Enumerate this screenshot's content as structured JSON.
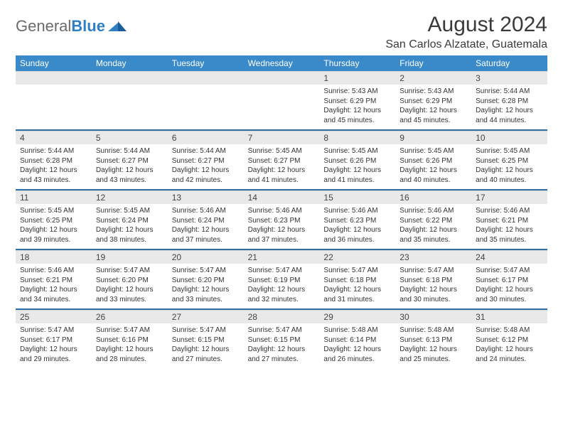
{
  "logo": {
    "part1": "General",
    "part2": "Blue"
  },
  "title": {
    "month": "August 2024",
    "location": "San Carlos Alzatate, Guatemala"
  },
  "colors": {
    "header_bg": "#3a8ac9",
    "daynum_bg": "#e9e9e9",
    "row_border": "#2f6fa6",
    "logo_gray": "#6b6b6b",
    "logo_blue": "#2f7fc2"
  },
  "weekdays": [
    "Sunday",
    "Monday",
    "Tuesday",
    "Wednesday",
    "Thursday",
    "Friday",
    "Saturday"
  ],
  "weeks": [
    {
      "nums": [
        "",
        "",
        "",
        "",
        "1",
        "2",
        "3"
      ],
      "details": [
        "",
        "",
        "",
        "",
        "Sunrise: 5:43 AM\nSunset: 6:29 PM\nDaylight: 12 hours and 45 minutes.",
        "Sunrise: 5:43 AM\nSunset: 6:29 PM\nDaylight: 12 hours and 45 minutes.",
        "Sunrise: 5:44 AM\nSunset: 6:28 PM\nDaylight: 12 hours and 44 minutes."
      ]
    },
    {
      "nums": [
        "4",
        "5",
        "6",
        "7",
        "8",
        "9",
        "10"
      ],
      "details": [
        "Sunrise: 5:44 AM\nSunset: 6:28 PM\nDaylight: 12 hours and 43 minutes.",
        "Sunrise: 5:44 AM\nSunset: 6:27 PM\nDaylight: 12 hours and 43 minutes.",
        "Sunrise: 5:44 AM\nSunset: 6:27 PM\nDaylight: 12 hours and 42 minutes.",
        "Sunrise: 5:45 AM\nSunset: 6:27 PM\nDaylight: 12 hours and 41 minutes.",
        "Sunrise: 5:45 AM\nSunset: 6:26 PM\nDaylight: 12 hours and 41 minutes.",
        "Sunrise: 5:45 AM\nSunset: 6:26 PM\nDaylight: 12 hours and 40 minutes.",
        "Sunrise: 5:45 AM\nSunset: 6:25 PM\nDaylight: 12 hours and 40 minutes."
      ]
    },
    {
      "nums": [
        "11",
        "12",
        "13",
        "14",
        "15",
        "16",
        "17"
      ],
      "details": [
        "Sunrise: 5:45 AM\nSunset: 6:25 PM\nDaylight: 12 hours and 39 minutes.",
        "Sunrise: 5:45 AM\nSunset: 6:24 PM\nDaylight: 12 hours and 38 minutes.",
        "Sunrise: 5:46 AM\nSunset: 6:24 PM\nDaylight: 12 hours and 37 minutes.",
        "Sunrise: 5:46 AM\nSunset: 6:23 PM\nDaylight: 12 hours and 37 minutes.",
        "Sunrise: 5:46 AM\nSunset: 6:23 PM\nDaylight: 12 hours and 36 minutes.",
        "Sunrise: 5:46 AM\nSunset: 6:22 PM\nDaylight: 12 hours and 35 minutes.",
        "Sunrise: 5:46 AM\nSunset: 6:21 PM\nDaylight: 12 hours and 35 minutes."
      ]
    },
    {
      "nums": [
        "18",
        "19",
        "20",
        "21",
        "22",
        "23",
        "24"
      ],
      "details": [
        "Sunrise: 5:46 AM\nSunset: 6:21 PM\nDaylight: 12 hours and 34 minutes.",
        "Sunrise: 5:47 AM\nSunset: 6:20 PM\nDaylight: 12 hours and 33 minutes.",
        "Sunrise: 5:47 AM\nSunset: 6:20 PM\nDaylight: 12 hours and 33 minutes.",
        "Sunrise: 5:47 AM\nSunset: 6:19 PM\nDaylight: 12 hours and 32 minutes.",
        "Sunrise: 5:47 AM\nSunset: 6:18 PM\nDaylight: 12 hours and 31 minutes.",
        "Sunrise: 5:47 AM\nSunset: 6:18 PM\nDaylight: 12 hours and 30 minutes.",
        "Sunrise: 5:47 AM\nSunset: 6:17 PM\nDaylight: 12 hours and 30 minutes."
      ]
    },
    {
      "nums": [
        "25",
        "26",
        "27",
        "28",
        "29",
        "30",
        "31"
      ],
      "details": [
        "Sunrise: 5:47 AM\nSunset: 6:17 PM\nDaylight: 12 hours and 29 minutes.",
        "Sunrise: 5:47 AM\nSunset: 6:16 PM\nDaylight: 12 hours and 28 minutes.",
        "Sunrise: 5:47 AM\nSunset: 6:15 PM\nDaylight: 12 hours and 27 minutes.",
        "Sunrise: 5:47 AM\nSunset: 6:15 PM\nDaylight: 12 hours and 27 minutes.",
        "Sunrise: 5:48 AM\nSunset: 6:14 PM\nDaylight: 12 hours and 26 minutes.",
        "Sunrise: 5:48 AM\nSunset: 6:13 PM\nDaylight: 12 hours and 25 minutes.",
        "Sunrise: 5:48 AM\nSunset: 6:12 PM\nDaylight: 12 hours and 24 minutes."
      ]
    }
  ]
}
